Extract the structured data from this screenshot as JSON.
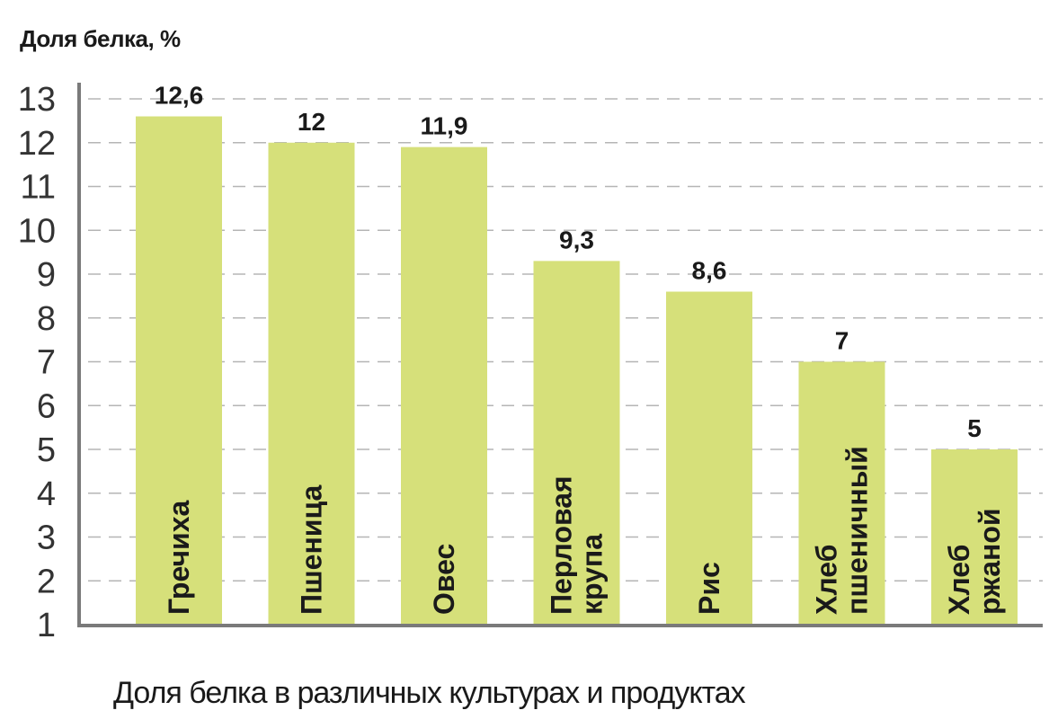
{
  "chart_data": {
    "type": "bar",
    "title": "Доля белка в различных культурах и продуктах",
    "ylabel": "Доля белка, %",
    "xlabel": "",
    "categories": [
      [
        "Гречиха"
      ],
      [
        "Пшеница"
      ],
      [
        "Овес"
      ],
      [
        "Перловая",
        "крупа"
      ],
      [
        "Рис"
      ],
      [
        "Хлеб",
        "пшеничный"
      ],
      [
        "Хлеб",
        "ржаной"
      ]
    ],
    "values": [
      12.6,
      12,
      11.9,
      9.3,
      8.6,
      7,
      5
    ],
    "value_labels": [
      "12,6",
      "12",
      "11,9",
      "9,3",
      "8,6",
      "7",
      "5"
    ],
    "yticks": [
      1,
      2,
      3,
      4,
      5,
      6,
      7,
      8,
      9,
      10,
      11,
      12,
      13
    ],
    "ylim": [
      0.2,
      13.2
    ],
    "grid": true,
    "bar_color": "#d6e07a"
  }
}
